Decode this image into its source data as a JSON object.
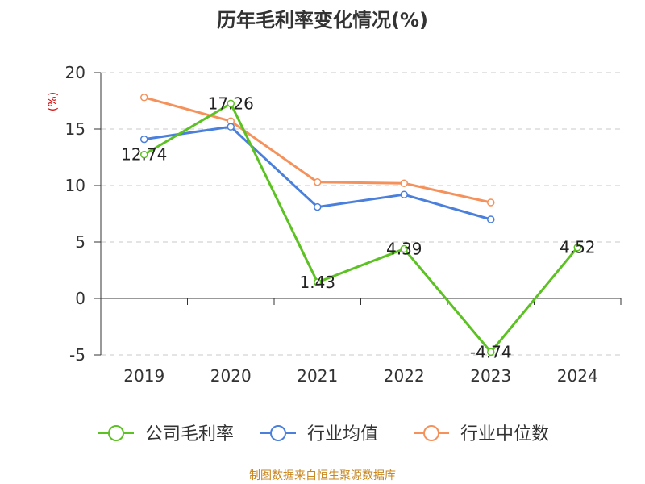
{
  "chart_data": {
    "type": "line",
    "title": "历年毛利率变化情况(%)",
    "ylabel": "(%)",
    "categories": [
      "2019",
      "2020",
      "2021",
      "2022",
      "2023",
      "2024"
    ],
    "ylim": [
      -5,
      20
    ],
    "yticks": [
      "20",
      "15",
      "10",
      "5",
      "0",
      "-5"
    ],
    "grid": true,
    "legend_position": "bottom",
    "series": [
      {
        "name": "公司毛利率",
        "color": "#5cc122",
        "values": [
          12.74,
          17.26,
          1.43,
          4.39,
          -4.74,
          4.52
        ],
        "labels": [
          "12.74",
          "17.26",
          "1.43",
          "4.39",
          "-4.74",
          "4.52"
        ]
      },
      {
        "name": "行业均值",
        "color": "#4a7fdc",
        "values": [
          14.1,
          15.2,
          8.1,
          9.2,
          7.0,
          null
        ]
      },
      {
        "name": "行业中位数",
        "color": "#f5915a",
        "values": [
          17.8,
          15.7,
          10.3,
          10.2,
          8.5,
          null
        ]
      }
    ]
  },
  "source_text": "制图数据来自恒生聚源数据库"
}
